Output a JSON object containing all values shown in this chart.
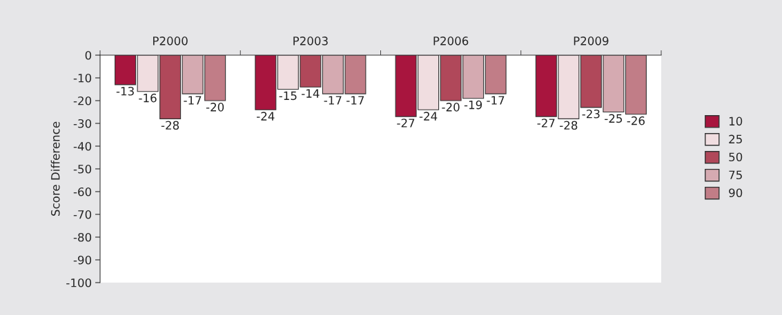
{
  "chart_data": {
    "type": "bar",
    "ylabel": "Score Difference",
    "categories": [
      "P2000",
      "P2003",
      "P2006",
      "P2009"
    ],
    "series": [
      {
        "name": "10",
        "color": "#a8153e",
        "values": [
          -13,
          -24,
          -27,
          -27
        ]
      },
      {
        "name": "25",
        "color": "#f0dde0",
        "values": [
          -16,
          -15,
          -24,
          -28
        ]
      },
      {
        "name": "50",
        "color": "#b0485a",
        "values": [
          -28,
          -14,
          -20,
          -23
        ]
      },
      {
        "name": "75",
        "color": "#d5aab1",
        "values": [
          -17,
          -17,
          -19,
          -25
        ]
      },
      {
        "name": "90",
        "color": "#c17d87",
        "values": [
          -20,
          -17,
          -17,
          -26
        ]
      }
    ],
    "ylim": [
      -100,
      0
    ],
    "yticks": [
      0,
      -10,
      -20,
      -30,
      -40,
      -50,
      -60,
      -70,
      -80,
      -90,
      -100
    ],
    "data_labels": true,
    "legend": "right",
    "grid": false
  }
}
